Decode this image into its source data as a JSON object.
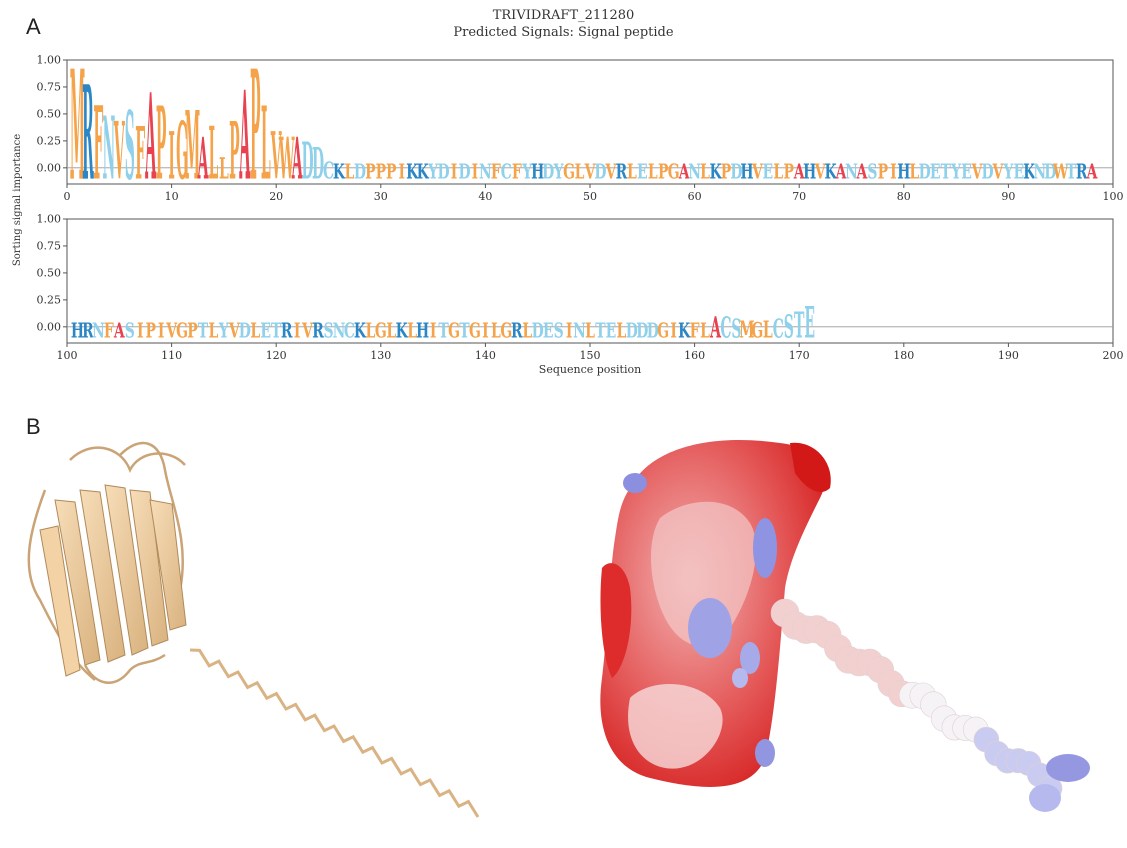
{
  "panel_a_label": "A",
  "panel_b_label": "B",
  "figure": {
    "title": "TRIVIDRAFT_211280",
    "subtitle": "Predicted Signals: Signal peptide",
    "ylabel": "Sorting signal importance",
    "xlabel": "Sequence position"
  },
  "colors": {
    "hydrophobic": "#f5a34a",
    "polar": "#8fd0ea",
    "positive": "#2a86c4",
    "alanine": "#e8414f",
    "frame": "#555555"
  },
  "chart_data": [
    {
      "type": "sequence-logo",
      "xlim": [
        0,
        100
      ],
      "ylim": [
        -0.15,
        1.0
      ],
      "xticks": [
        0,
        10,
        20,
        30,
        40,
        50,
        60,
        70,
        80,
        90,
        100
      ],
      "yticks": [
        "1.00",
        "0.75",
        "0.50",
        "0.25",
        "0.00"
      ],
      "start": 1,
      "sequence": "MRFNVSFAPIGMALLPAPLVWADDCKLDPPPIKKYDIDINFCFYHDYGLVDVRLELPGANLKPDHVELPAHVKANASPIHLDETYEVDVYEKNDWTRA",
      "importance": [
        0.95,
        0.8,
        0.6,
        0.5,
        0.45,
        0.55,
        0.4,
        0.72,
        0.6,
        0.35,
        0.45,
        0.55,
        0.3,
        0.4,
        0.1,
        0.45,
        0.75,
        0.95,
        0.6,
        0.35,
        0.3,
        0.3,
        0.25,
        0.2,
        0.06,
        0.04,
        0.04,
        0.04,
        0.04,
        0.04,
        0.04,
        0.04,
        0.04,
        0.04,
        0.04,
        0.04,
        0.04,
        0.04,
        0.04,
        0.04,
        0.04,
        0.04,
        0.04,
        0.04,
        0.04,
        0.04,
        0.04,
        0.04,
        0.04,
        0.04,
        0.04,
        0.04,
        0.04,
        0.04,
        0.04,
        0.04,
        0.04,
        0.04,
        0.04,
        0.04,
        0.04,
        0.04,
        0.04,
        0.04,
        0.04,
        0.04,
        0.04,
        0.04,
        0.04,
        0.04,
        0.04,
        0.04,
        0.04,
        0.04,
        0.04,
        0.04,
        0.04,
        0.04,
        0.04,
        0.04,
        0.04,
        0.04,
        0.04,
        0.04,
        0.04,
        0.04,
        0.04,
        0.04,
        0.04,
        0.04,
        0.04,
        0.04,
        0.04,
        0.04,
        0.04,
        0.04,
        0.04,
        0.04
      ]
    },
    {
      "type": "sequence-logo",
      "xlim": [
        100,
        200
      ],
      "ylim": [
        -0.15,
        1.0
      ],
      "xticks": [
        100,
        110,
        120,
        130,
        140,
        150,
        160,
        170,
        180,
        190,
        200
      ],
      "yticks": [
        "1.00",
        "0.75",
        "0.50",
        "0.25",
        "0.00"
      ],
      "start": 101,
      "sequence": "HRNFASIPIVGPTLYVDLETRIVRSNCKLGLKLHITGTGILGRLDESINLTELDDDGIKFLACSMGLCSTE",
      "importance": [
        0.04,
        0.04,
        0.04,
        0.04,
        0.04,
        0.04,
        0.04,
        0.04,
        0.04,
        0.04,
        0.04,
        0.04,
        0.04,
        0.04,
        0.04,
        0.04,
        0.04,
        0.04,
        0.04,
        0.04,
        0.04,
        0.04,
        0.04,
        0.04,
        0.04,
        0.04,
        0.04,
        0.04,
        0.04,
        0.04,
        0.04,
        0.04,
        0.04,
        0.04,
        0.04,
        0.04,
        0.04,
        0.04,
        0.04,
        0.04,
        0.04,
        0.04,
        0.04,
        0.04,
        0.04,
        0.04,
        0.04,
        0.04,
        0.04,
        0.04,
        0.04,
        0.04,
        0.04,
        0.04,
        0.04,
        0.04,
        0.04,
        0.04,
        0.04,
        0.04,
        0.04,
        0.1,
        0.1,
        0.08,
        0.06,
        0.05,
        0.06,
        0.08,
        0.12,
        0.15,
        0.2
      ]
    }
  ]
}
